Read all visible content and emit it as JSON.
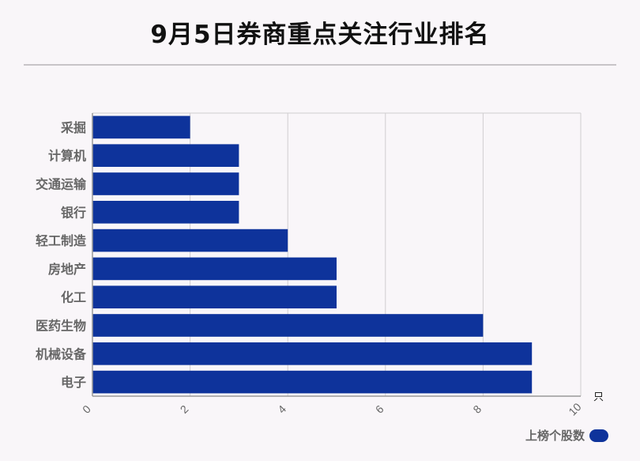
{
  "title": "9月5日券商重点关注行业排名",
  "legend": {
    "label": "上榜个股数"
  },
  "colors": {
    "bar": "#0e339b",
    "grid": "#d0cdd0",
    "axis": "#999999",
    "label": "#666666"
  },
  "chart_data": {
    "type": "bar",
    "orientation": "horizontal",
    "title": "9月5日券商重点关注行业排名",
    "categories": [
      "采掘",
      "计算机",
      "交通运输",
      "银行",
      "轻工制造",
      "房地产",
      "化工",
      "医药生物",
      "机械设备",
      "电子"
    ],
    "series": [
      {
        "name": "上榜个股数",
        "values": [
          2,
          3,
          3,
          3,
          4,
          5,
          5,
          8,
          9,
          9
        ]
      }
    ],
    "xlim": [
      0,
      10
    ],
    "xticks": [
      "0",
      "2",
      "4",
      "6",
      "8",
      "10"
    ],
    "xunit": "只",
    "grid": true,
    "legend_position": "bottom-right"
  }
}
